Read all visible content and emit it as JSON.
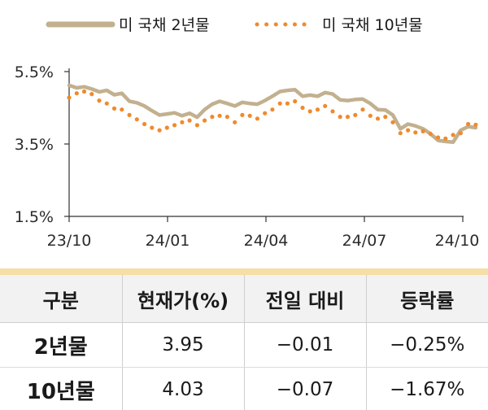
{
  "colors": {
    "series_2y": "#c2b08f",
    "series_10y": "#f08a2c",
    "axis": "#333333",
    "table_header_bg": "#f2f2f2",
    "accent_rule": "#f5dfa6"
  },
  "chart_data": {
    "type": "line",
    "title": "",
    "xlabel": "",
    "ylabel": "",
    "x_tick_labels": [
      "23/10",
      "24/01",
      "24/04",
      "24/07",
      "24/10"
    ],
    "y_tick_labels": [
      "5.5%",
      "3.5%",
      "1.5%"
    ],
    "y_ticks": [
      5.5,
      3.5,
      1.5
    ],
    "ylim": [
      1.5,
      5.7
    ],
    "xlim": [
      "2023-10-02",
      "2024-10-02"
    ],
    "grid": false,
    "legend_position": "top",
    "series": [
      {
        "name": "미 국채 2년물",
        "style": "solid",
        "points": [
          [
            "2023-10-02",
            5.12
          ],
          [
            "2023-10-09",
            5.05
          ],
          [
            "2023-10-16",
            5.08
          ],
          [
            "2023-10-23",
            5.02
          ],
          [
            "2023-10-30",
            4.94
          ],
          [
            "2023-11-06",
            4.98
          ],
          [
            "2023-11-13",
            4.86
          ],
          [
            "2023-11-20",
            4.9
          ],
          [
            "2023-11-27",
            4.68
          ],
          [
            "2023-12-04",
            4.64
          ],
          [
            "2023-12-11",
            4.55
          ],
          [
            "2023-12-18",
            4.42
          ],
          [
            "2023-12-25",
            4.3
          ],
          [
            "2024-01-01",
            4.33
          ],
          [
            "2024-01-08",
            4.36
          ],
          [
            "2024-01-15",
            4.28
          ],
          [
            "2024-01-22",
            4.35
          ],
          [
            "2024-01-29",
            4.24
          ],
          [
            "2024-02-05",
            4.45
          ],
          [
            "2024-02-12",
            4.6
          ],
          [
            "2024-02-19",
            4.68
          ],
          [
            "2024-02-26",
            4.62
          ],
          [
            "2024-03-04",
            4.55
          ],
          [
            "2024-03-11",
            4.65
          ],
          [
            "2024-03-18",
            4.62
          ],
          [
            "2024-03-25",
            4.6
          ],
          [
            "2024-04-01",
            4.7
          ],
          [
            "2024-04-08",
            4.82
          ],
          [
            "2024-04-15",
            4.95
          ],
          [
            "2024-04-22",
            4.98
          ],
          [
            "2024-04-29",
            5.0
          ],
          [
            "2024-05-06",
            4.82
          ],
          [
            "2024-05-13",
            4.85
          ],
          [
            "2024-05-20",
            4.82
          ],
          [
            "2024-05-27",
            4.92
          ],
          [
            "2024-06-03",
            4.88
          ],
          [
            "2024-06-10",
            4.72
          ],
          [
            "2024-06-17",
            4.7
          ],
          [
            "2024-06-24",
            4.73
          ],
          [
            "2024-07-01",
            4.74
          ],
          [
            "2024-07-08",
            4.62
          ],
          [
            "2024-07-15",
            4.45
          ],
          [
            "2024-07-22",
            4.44
          ],
          [
            "2024-07-29",
            4.3
          ],
          [
            "2024-08-05",
            3.92
          ],
          [
            "2024-08-12",
            4.05
          ],
          [
            "2024-08-19",
            4.0
          ],
          [
            "2024-08-26",
            3.92
          ],
          [
            "2024-09-02",
            3.78
          ],
          [
            "2024-09-09",
            3.6
          ],
          [
            "2024-09-16",
            3.57
          ],
          [
            "2024-09-23",
            3.55
          ],
          [
            "2024-09-30",
            3.88
          ],
          [
            "2024-10-07",
            3.98
          ],
          [
            "2024-10-14",
            3.95
          ]
        ]
      },
      {
        "name": "미 국채 10년물",
        "style": "dotted",
        "points": [
          [
            "2023-10-02",
            4.78
          ],
          [
            "2023-10-09",
            4.9
          ],
          [
            "2023-10-16",
            4.95
          ],
          [
            "2023-10-23",
            4.88
          ],
          [
            "2023-10-30",
            4.7
          ],
          [
            "2023-11-06",
            4.62
          ],
          [
            "2023-11-13",
            4.48
          ],
          [
            "2023-11-20",
            4.45
          ],
          [
            "2023-11-27",
            4.3
          ],
          [
            "2023-12-04",
            4.18
          ],
          [
            "2023-12-11",
            4.05
          ],
          [
            "2023-12-18",
            3.95
          ],
          [
            "2023-12-25",
            3.88
          ],
          [
            "2024-01-01",
            3.95
          ],
          [
            "2024-01-08",
            4.02
          ],
          [
            "2024-01-15",
            4.1
          ],
          [
            "2024-01-22",
            4.15
          ],
          [
            "2024-01-29",
            4.02
          ],
          [
            "2024-02-05",
            4.15
          ],
          [
            "2024-02-12",
            4.25
          ],
          [
            "2024-02-19",
            4.28
          ],
          [
            "2024-02-26",
            4.25
          ],
          [
            "2024-03-04",
            4.1
          ],
          [
            "2024-03-11",
            4.3
          ],
          [
            "2024-03-18",
            4.28
          ],
          [
            "2024-03-25",
            4.2
          ],
          [
            "2024-04-01",
            4.35
          ],
          [
            "2024-04-08",
            4.45
          ],
          [
            "2024-04-15",
            4.62
          ],
          [
            "2024-04-22",
            4.62
          ],
          [
            "2024-04-29",
            4.68
          ],
          [
            "2024-05-06",
            4.5
          ],
          [
            "2024-05-13",
            4.4
          ],
          [
            "2024-05-20",
            4.45
          ],
          [
            "2024-05-27",
            4.55
          ],
          [
            "2024-06-03",
            4.4
          ],
          [
            "2024-06-10",
            4.25
          ],
          [
            "2024-06-17",
            4.25
          ],
          [
            "2024-06-24",
            4.3
          ],
          [
            "2024-07-01",
            4.45
          ],
          [
            "2024-07-08",
            4.28
          ],
          [
            "2024-07-15",
            4.2
          ],
          [
            "2024-07-22",
            4.25
          ],
          [
            "2024-07-29",
            4.1
          ],
          [
            "2024-08-05",
            3.8
          ],
          [
            "2024-08-12",
            3.88
          ],
          [
            "2024-08-19",
            3.82
          ],
          [
            "2024-08-26",
            3.85
          ],
          [
            "2024-09-02",
            3.78
          ],
          [
            "2024-09-09",
            3.68
          ],
          [
            "2024-09-16",
            3.65
          ],
          [
            "2024-09-23",
            3.75
          ],
          [
            "2024-09-30",
            3.8
          ],
          [
            "2024-10-07",
            4.05
          ],
          [
            "2024-10-14",
            4.03
          ]
        ]
      }
    ]
  },
  "table": {
    "headers": [
      "구분",
      "현재가(%)",
      "전일 대비",
      "등락률"
    ],
    "rows": [
      [
        "2년물",
        "3.95",
        "−0.01",
        "−0.25%"
      ],
      [
        "10년물",
        "4.03",
        "−0.07",
        "−1.67%"
      ]
    ]
  }
}
